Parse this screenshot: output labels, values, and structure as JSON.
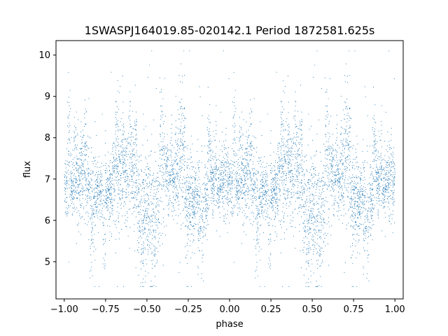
{
  "chart_data": {
    "type": "scatter",
    "title": "1SWASPJ164019.85-020142.1 Period 1872581.625s",
    "xlabel": "phase",
    "ylabel": "flux",
    "xlim": [
      -1.05,
      1.05
    ],
    "ylim": [
      4.1,
      10.35
    ],
    "xticks": [
      -1.0,
      -0.75,
      -0.5,
      -0.25,
      0.0,
      0.25,
      0.5,
      0.75,
      1.0
    ],
    "xtick_labels": [
      "−1.00",
      "−0.75",
      "−0.50",
      "−0.25",
      "0.00",
      "0.25",
      "0.50",
      "0.75",
      "1.00"
    ],
    "yticks": [
      5,
      6,
      7,
      8,
      9,
      10
    ],
    "ytick_labels": [
      "5",
      "6",
      "7",
      "8",
      "9",
      "10"
    ],
    "grid": false,
    "marker_color": "#1f77b4",
    "series_summary": {
      "x_range": [
        -1.0,
        1.0
      ],
      "bulk_flux_range": [
        6.0,
        8.5
      ],
      "center_flux": 7.2,
      "outlier_range": [
        4.4,
        10.1
      ],
      "symmetric_about_phase": 0.0
    }
  }
}
